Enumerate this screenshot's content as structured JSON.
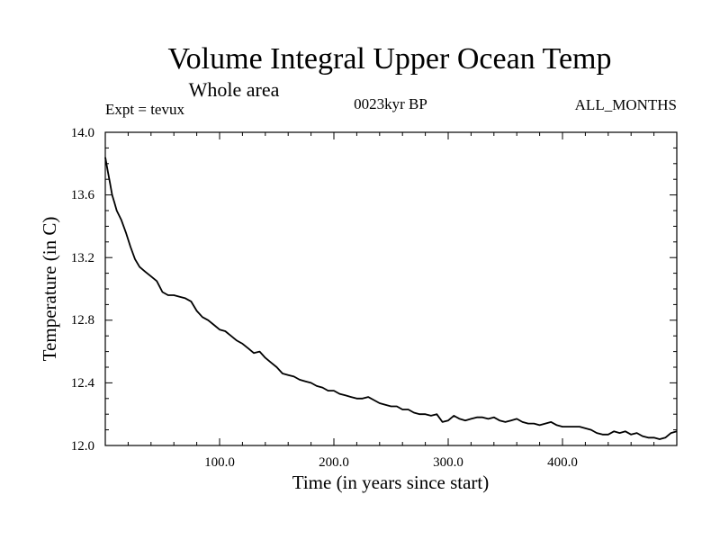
{
  "chart_data": {
    "type": "line",
    "title": "Volume Integral Upper Ocean Temp",
    "subtitle": "Whole area",
    "experiment": "Expt = tevux",
    "period": "0023kyr BP",
    "months": "ALL_MONTHS",
    "xlabel": "Time (in years since start)",
    "ylabel": "Temperature (in C)",
    "xlim": [
      0,
      500
    ],
    "ylim": [
      12.0,
      14.0
    ],
    "x_ticks": [
      "100.0",
      "200.0",
      "300.0",
      "400.0"
    ],
    "y_ticks": [
      "12.0",
      "12.4",
      "12.8",
      "13.2",
      "13.6",
      "14.0"
    ],
    "grid": false,
    "series": [
      {
        "x": [
          0,
          2,
          4,
          6,
          8,
          10,
          14,
          18,
          22,
          26,
          30,
          35,
          40,
          45,
          50,
          55,
          60,
          65,
          70,
          75,
          80,
          85,
          90,
          95,
          100,
          105,
          110,
          115,
          120,
          125,
          130,
          135,
          140,
          145,
          150,
          155,
          160,
          165,
          170,
          175,
          180,
          185,
          190,
          195,
          200,
          205,
          210,
          215,
          220,
          225,
          230,
          235,
          240,
          245,
          250,
          255,
          260,
          265,
          270,
          275,
          280,
          285,
          290,
          295,
          300,
          305,
          310,
          315,
          320,
          325,
          330,
          335,
          340,
          345,
          350,
          355,
          360,
          365,
          370,
          375,
          380,
          385,
          390,
          395,
          400,
          405,
          410,
          415,
          420,
          425,
          430,
          435,
          440,
          445,
          450,
          455,
          460,
          465,
          470,
          475,
          480,
          485,
          490,
          495,
          500
        ],
        "y": [
          13.84,
          13.76,
          13.68,
          13.6,
          13.55,
          13.5,
          13.44,
          13.36,
          13.27,
          13.19,
          13.14,
          13.11,
          13.08,
          13.05,
          12.98,
          12.96,
          12.96,
          12.95,
          12.94,
          12.92,
          12.86,
          12.82,
          12.8,
          12.77,
          12.74,
          12.73,
          12.7,
          12.67,
          12.65,
          12.62,
          12.59,
          12.6,
          12.56,
          12.53,
          12.5,
          12.46,
          12.45,
          12.44,
          12.42,
          12.41,
          12.4,
          12.38,
          12.37,
          12.35,
          12.35,
          12.33,
          12.32,
          12.31,
          12.3,
          12.3,
          12.31,
          12.29,
          12.27,
          12.26,
          12.25,
          12.25,
          12.23,
          12.23,
          12.21,
          12.2,
          12.2,
          12.19,
          12.2,
          12.15,
          12.16,
          12.19,
          12.17,
          12.16,
          12.17,
          12.18,
          12.18,
          12.17,
          12.18,
          12.16,
          12.15,
          12.16,
          12.17,
          12.15,
          12.14,
          12.14,
          12.13,
          12.14,
          12.15,
          12.13,
          12.12,
          12.12,
          12.12,
          12.12,
          12.11,
          12.1,
          12.08,
          12.07,
          12.07,
          12.09,
          12.08,
          12.09,
          12.07,
          12.08,
          12.06,
          12.05,
          12.05,
          12.04,
          12.05,
          12.08,
          12.09
        ]
      }
    ]
  }
}
